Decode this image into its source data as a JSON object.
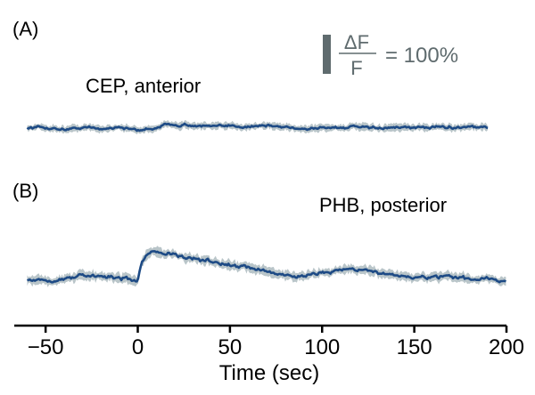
{
  "chart_data": {
    "type": "line",
    "xlabel": "Time (sec)",
    "xlim": [
      -67,
      200
    ],
    "x_ticks": [
      -50,
      0,
      50,
      100,
      150,
      200
    ],
    "x_tick_labels": [
      "−50",
      "0",
      "50",
      "100",
      "150",
      "200"
    ],
    "scale_bar": {
      "numerator": "ΔF",
      "denominator": "F",
      "value_text": "= 100%",
      "value_percent": 100
    },
    "colors": {
      "mean": "#1d4a85",
      "sem": "#b9c5c9",
      "scale": "#5f6b6e"
    },
    "panels": [
      {
        "letter": "(A)",
        "label": "CEP, anterior",
        "x": [
          -60,
          -50,
          -40,
          -30,
          -20,
          -10,
          0,
          5,
          10,
          15,
          20,
          25,
          30,
          40,
          50,
          60,
          70,
          80,
          90,
          100,
          110,
          120,
          130,
          140,
          150,
          160,
          170,
          180,
          190
        ],
        "y": [
          0,
          1,
          -4,
          2,
          -2,
          3,
          -7,
          -3,
          2,
          8,
          12,
          9,
          7,
          4,
          6,
          5,
          7,
          3,
          -2,
          3,
          1,
          4,
          -1,
          3,
          0,
          4,
          2,
          5,
          2
        ],
        "noise": 7,
        "sem": 9
      },
      {
        "letter": "(B)",
        "label": "PHB, posterior",
        "x": [
          -60,
          -50,
          -40,
          -30,
          -20,
          -10,
          -5,
          -1,
          0,
          2,
          5,
          8,
          10,
          15,
          20,
          25,
          30,
          40,
          50,
          60,
          70,
          80,
          85,
          90,
          100,
          110,
          115,
          120,
          130,
          140,
          150,
          160,
          170,
          180,
          190,
          200
        ],
        "y": [
          0,
          -3,
          0,
          12,
          8,
          4,
          0,
          -7,
          -4,
          40,
          73,
          82,
          75,
          70,
          68,
          62,
          57,
          50,
          38,
          33,
          25,
          12,
          8,
          12,
          18,
          24,
          30,
          25,
          20,
          12,
          5,
          3,
          6,
          2,
          2,
          -6
        ],
        "noise": 9,
        "sem": 12
      }
    ]
  }
}
